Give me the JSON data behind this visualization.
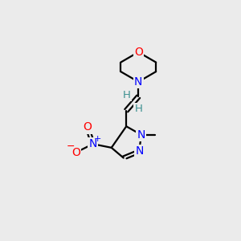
{
  "background_color": "#ebebeb",
  "bond_color": "#000000",
  "atom_colors": {
    "O": "#ff0000",
    "N": "#0000ff",
    "C": "#000000",
    "H": "#3d9090",
    "plus": "#0000ff",
    "minus": "#ff0000"
  },
  "figsize": [
    3.0,
    3.0
  ],
  "dpi": 100
}
